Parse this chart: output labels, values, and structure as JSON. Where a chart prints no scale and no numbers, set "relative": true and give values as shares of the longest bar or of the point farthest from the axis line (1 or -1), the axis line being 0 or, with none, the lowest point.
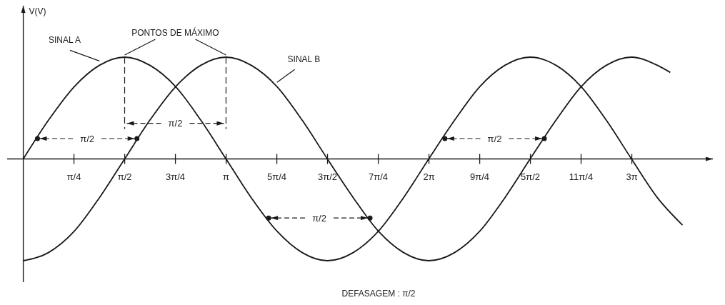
{
  "chart_data": {
    "type": "line",
    "relative": true,
    "ylabel": "V(V)",
    "xlim": [
      -0.25,
      10.68
    ],
    "xticks": [
      {
        "value": 0.785,
        "label": "π/4"
      },
      {
        "value": 1.571,
        "label": "π/2"
      },
      {
        "value": 2.356,
        "label": "3π/4"
      },
      {
        "value": 3.142,
        "label": "π"
      },
      {
        "value": 3.927,
        "label": "5π/4"
      },
      {
        "value": 4.712,
        "label": "3π/2"
      },
      {
        "value": 5.498,
        "label": "7π/4"
      },
      {
        "value": 6.283,
        "label": "2π"
      },
      {
        "value": 7.069,
        "label": "9π/4"
      },
      {
        "value": 7.854,
        "label": "5π/2"
      },
      {
        "value": 8.639,
        "label": "11π/4"
      },
      {
        "value": 9.425,
        "label": "3π"
      }
    ],
    "annotations": [
      "PONTOS DE MÁXIMO",
      "π/2",
      "π/2",
      "π/2",
      "π/2",
      "DEFASAGEM : π/2"
    ],
    "series": [
      {
        "name": "SINAL A",
        "color": "#1a1a1a",
        "x": [
          0,
          0.39,
          0.79,
          1.18,
          1.57,
          1.96,
          2.36,
          2.75,
          3.14,
          3.53,
          3.93,
          4.32,
          4.71,
          5.11,
          5.5,
          5.89,
          6.28,
          6.68,
          7.07,
          7.46,
          7.85,
          8.25,
          8.64,
          9.03,
          9.42,
          9.82,
          10.21
        ],
        "values": [
          0,
          0.38,
          0.71,
          0.92,
          1,
          0.92,
          0.71,
          0.38,
          0,
          -0.38,
          -0.71,
          -0.92,
          -1,
          -0.92,
          -0.71,
          -0.38,
          0,
          0.38,
          0.71,
          0.92,
          1,
          0.92,
          0.71,
          0.38,
          0,
          -0.38,
          -0.65
        ]
      },
      {
        "name": "SINAL B",
        "color": "#1a1a1a",
        "x": [
          0,
          0.39,
          0.79,
          1.18,
          1.57,
          1.96,
          2.36,
          2.75,
          3.14,
          3.53,
          3.93,
          4.32,
          4.71,
          5.11,
          5.5,
          5.89,
          6.28,
          6.68,
          7.07,
          7.46,
          7.85,
          8.25,
          8.64,
          9.03,
          9.42,
          9.82,
          10.02
        ],
        "values": [
          -1,
          -0.92,
          -0.71,
          -0.38,
          0,
          0.38,
          0.71,
          0.92,
          1,
          0.92,
          0.71,
          0.38,
          0,
          -0.38,
          -0.71,
          -0.92,
          -1,
          -0.92,
          -0.71,
          -0.38,
          0,
          0.38,
          0.71,
          0.92,
          1,
          0.92,
          0.85
        ]
      },
      {
        "type": "scatter",
        "color": "#1a1a1a",
        "x": [
          0.22,
          1.76,
          3.8,
          5.37,
          6.53,
          8.07
        ],
        "values": [
          0.2,
          0.2,
          -0.58,
          -0.58,
          0.2,
          0.2
        ]
      }
    ]
  }
}
